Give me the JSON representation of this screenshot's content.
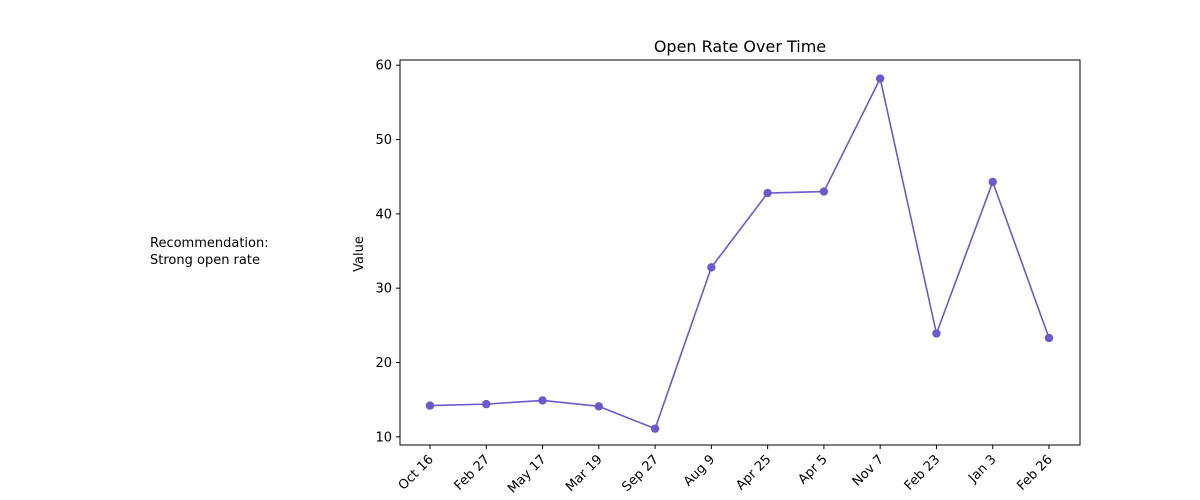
{
  "recommendation": {
    "heading": "Recommendation:",
    "text": "Strong open rate"
  },
  "chart_data": {
    "type": "line",
    "title": "Open Rate Over Time",
    "xlabel": "",
    "ylabel": "Value",
    "categories": [
      "Oct 16",
      "Feb 27",
      "May 17",
      "Mar 19",
      "Sep 27",
      "Aug 9",
      "Apr 25",
      "Apr 5",
      "Nov 7",
      "Feb 23",
      "Jan 3",
      "Feb 26"
    ],
    "series": [
      {
        "values": [
          14.2,
          14.4,
          14.9,
          14.1,
          11.1,
          32.8,
          42.8,
          43.0,
          58.2,
          23.9,
          44.3,
          23.3
        ],
        "color": "#6a5acd"
      }
    ],
    "ylim": [
      8.9,
      60.7
    ],
    "yticks": [
      10,
      20,
      30,
      40,
      50,
      60
    ],
    "grid": false,
    "legend": false
  }
}
